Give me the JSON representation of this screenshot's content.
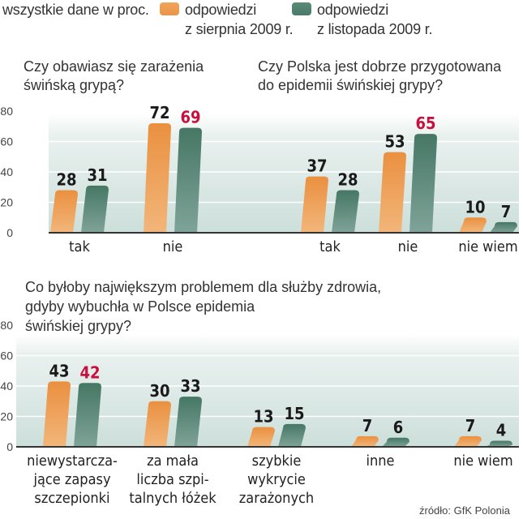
{
  "legend": {
    "note": "wszystkie dane w proc.",
    "series": [
      {
        "name_line1": "odpowiedzi",
        "name_line2": "z sierpnia 2009 r.",
        "color": "#ee9a4e"
      },
      {
        "name_line1": "odpowiedzi",
        "name_line2": "z listopada 2009 r.",
        "color": "#4e7f6e"
      }
    ]
  },
  "source": "źródło: GfK Polonia",
  "colors": {
    "highlight": "#c8103e",
    "label": "#1a1a1a",
    "axis": "#333333",
    "grid": "#ffffff",
    "bg_top": "#ffffff",
    "bg_bottom": "#cfe0dc"
  },
  "chart_data": [
    {
      "type": "bar",
      "title_lines": [
        "Czy obawiasz się zarażenia",
        "świńską grypą?"
      ],
      "categories": [
        "tak",
        "nie"
      ],
      "series": [
        {
          "name": "odpowiedzi z sierpnia 2009 r.",
          "values": [
            28,
            72
          ]
        },
        {
          "name": "odpowiedzi z listopada 2009 r.",
          "values": [
            31,
            69
          ]
        }
      ],
      "highlight": [
        [
          false,
          false
        ],
        [
          false,
          true
        ]
      ],
      "yticks": [
        0,
        20,
        40,
        60,
        80
      ],
      "ylim": [
        0,
        80
      ],
      "grid": true
    },
    {
      "type": "bar",
      "title_lines": [
        "Czy Polska jest dobrze przygotowana",
        "do epidemii świńskiej grypy?"
      ],
      "categories": [
        "tak",
        "nie",
        "nie wiem"
      ],
      "series": [
        {
          "name": "odpowiedzi z sierpnia 2009 r.",
          "values": [
            37,
            53,
            10
          ]
        },
        {
          "name": "odpowiedzi z listopada 2009 r.",
          "values": [
            28,
            65,
            7
          ]
        }
      ],
      "highlight": [
        [
          false,
          false
        ],
        [
          false,
          true
        ],
        [
          false,
          false
        ]
      ],
      "ylim": [
        0,
        80
      ],
      "grid": true
    },
    {
      "type": "bar",
      "title_lines": [
        "Co byłoby największym problemem dla służby zdrowia,",
        "gdyby wybuchła w Polsce epidemia",
        "świńskiej grypy?"
      ],
      "categories": [
        [
          "niewystarcza-",
          "jące zapasy",
          "szczepionki"
        ],
        [
          "za mała",
          "liczba szpi-",
          "talnych łóżek"
        ],
        [
          "szybkie",
          "wykrycie",
          "zarażonych"
        ],
        [
          "inne"
        ],
        [
          "nie wiem"
        ]
      ],
      "series": [
        {
          "name": "odpowiedzi z sierpnia 2009 r.",
          "values": [
            43,
            30,
            13,
            7,
            7
          ]
        },
        {
          "name": "odpowiedzi z listopada 2009 r.",
          "values": [
            42,
            33,
            15,
            6,
            4
          ]
        }
      ],
      "highlight": [
        [
          false,
          true
        ],
        [
          false,
          false
        ],
        [
          false,
          false
        ],
        [
          false,
          false
        ],
        [
          false,
          false
        ]
      ],
      "yticks": [
        0,
        20,
        40,
        60,
        80
      ],
      "ylim": [
        0,
        80
      ],
      "grid": true
    }
  ]
}
